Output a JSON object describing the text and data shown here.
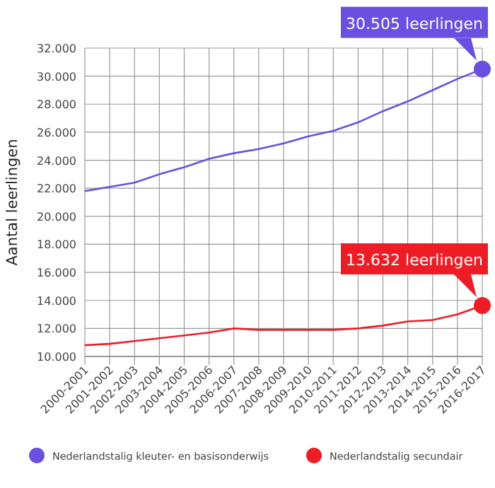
{
  "chart_data": {
    "type": "line",
    "ylabel": "Aantal leerlingen",
    "categories": [
      "2000-2001",
      "2001-2002",
      "2002-2003",
      "2003-2004",
      "2004-2005",
      "2005-2006",
      "2006-2007",
      "2007-2008",
      "2008-2009",
      "2009-2010",
      "2010-2011",
      "2011-2012",
      "2012-2013",
      "2013-2014",
      "2014-2015",
      "2015-2016",
      "2016-2017"
    ],
    "series": [
      {
        "name": "Nederlandstalig kleuter- en basisonderwijs",
        "color": "#6a4fe0",
        "values": [
          21800,
          22100,
          22400,
          23000,
          23500,
          24100,
          24500,
          24800,
          25200,
          25700,
          26100,
          26700,
          27500,
          28200,
          29000,
          29800,
          30505
        ]
      },
      {
        "name": "Nederlandstalig secundair",
        "color": "#ee1c25",
        "values": [
          10800,
          10900,
          11100,
          11300,
          11500,
          11700,
          12000,
          11900,
          11900,
          11900,
          11900,
          12000,
          12200,
          12500,
          12600,
          13000,
          13632
        ]
      }
    ],
    "ylim": [
      10000,
      32000
    ],
    "yticks": [
      {
        "value": 10000,
        "label": "10.000"
      },
      {
        "value": 12000,
        "label": "12.000"
      },
      {
        "value": 14000,
        "label": "14.000"
      },
      {
        "value": 16000,
        "label": "16.000"
      },
      {
        "value": 18000,
        "label": "18.000"
      },
      {
        "value": 20000,
        "label": "20.000"
      },
      {
        "value": 22000,
        "label": "22.000"
      },
      {
        "value": 24000,
        "label": "24.000"
      },
      {
        "value": 26000,
        "label": "26.000"
      },
      {
        "value": 28000,
        "label": "28.000"
      },
      {
        "value": 30000,
        "label": "30.000"
      },
      {
        "value": 32000,
        "label": "32.000"
      }
    ],
    "grid": true,
    "legend": "bottom",
    "annotations": [
      {
        "text": "30.505 leerlingen",
        "x": "2016-2017",
        "y": 30505
      },
      {
        "text": "13.632 leerlingen",
        "x": "2016-2017",
        "y": 13632
      }
    ]
  }
}
